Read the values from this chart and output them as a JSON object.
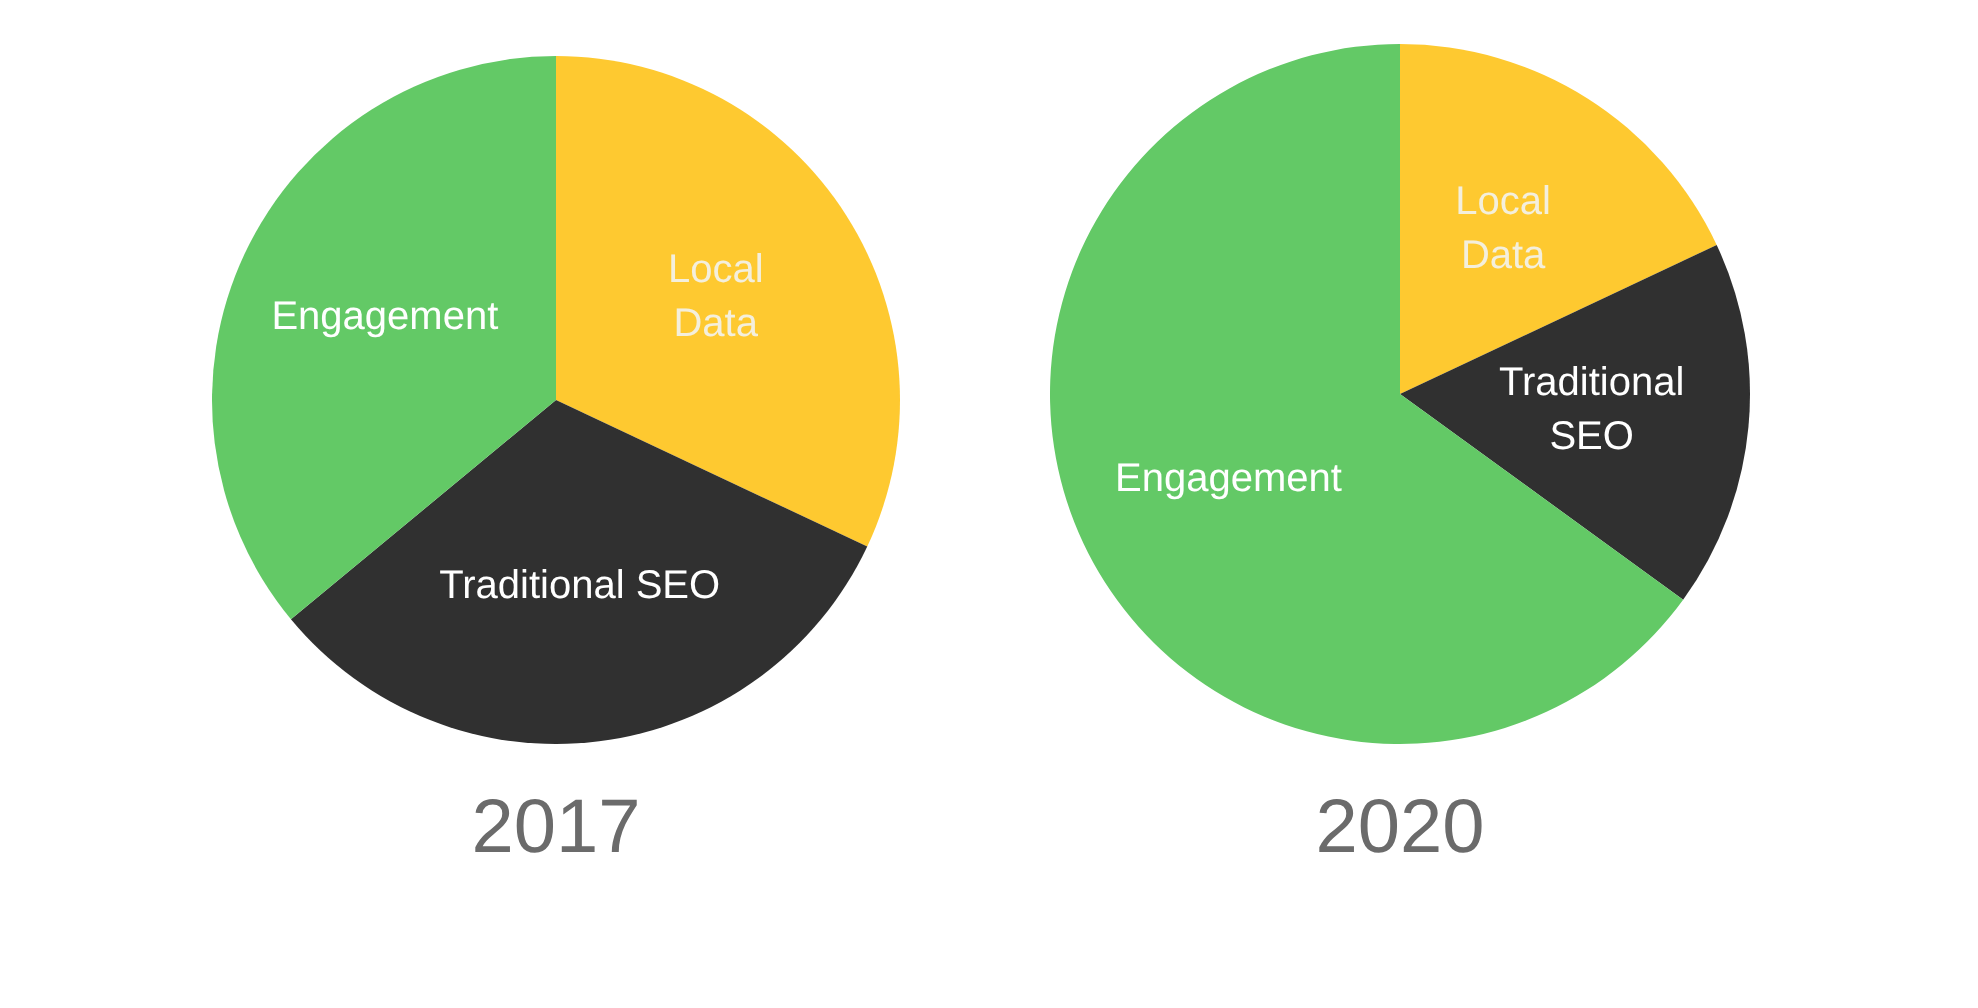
{
  "chart_data": [
    {
      "type": "pie",
      "title": "2017",
      "categories": [
        "Local Data",
        "Traditional SEO",
        "Engagement"
      ],
      "values": [
        32,
        32,
        36
      ],
      "colors": [
        "#fec930",
        "#303030",
        "#63c966"
      ]
    },
    {
      "type": "pie",
      "title": "2020",
      "categories": [
        "Local Data",
        "Traditional SEO",
        "Engagement"
      ],
      "values": [
        18,
        17,
        65
      ],
      "colors": [
        "#fec930",
        "#303030",
        "#63c966"
      ]
    }
  ]
}
